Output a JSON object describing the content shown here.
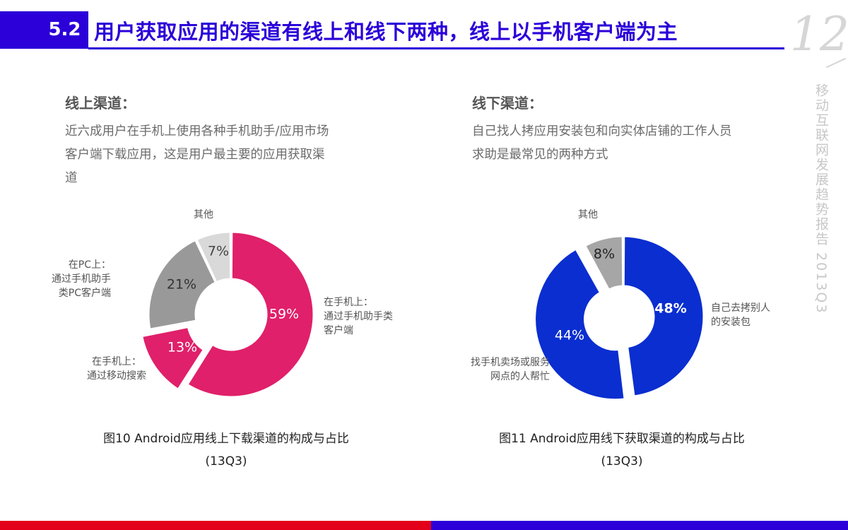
{
  "header": {
    "section_number": "5.2",
    "title": "用户获取应用的渠道有线上和线下两种，线上以手机客户端为主",
    "page_number": "12",
    "report_name": "移动互联网发展趋势报告 2013Q3"
  },
  "left": {
    "heading": "线上渠道：",
    "desc_lines": [
      "近六成用户在手机上使用各种手机助手/应用市场",
      "客户端下载应用，这是用户最主要的应用获取渠",
      "道"
    ],
    "caption_line1": "图10 Android应用线上下载渠道的构成与占比",
    "caption_line2": "(13Q3)"
  },
  "right": {
    "heading": "线下渠道：",
    "desc_lines": [
      "自己找人拷应用安装包和向实体店铺的工作人员",
      "求助是最常见的两种方式"
    ],
    "caption_line1": "图11 Android应用线下获取渠道的构成与占比",
    "caption_line2": "(13Q3)"
  },
  "chart_data": [
    {
      "type": "pie",
      "donut": true,
      "title": "图10 Android应用线上下载渠道的构成与占比 (13Q3)",
      "slices": [
        {
          "label_lines": [
            "在手机上：",
            "通过手机助手类",
            "客户端"
          ],
          "value": 59,
          "value_label": "59%",
          "color": "#e0206a"
        },
        {
          "label_lines": [
            "在手机上：",
            "通过移动搜索"
          ],
          "value": 13,
          "value_label": "13%",
          "color": "#e0206a"
        },
        {
          "label_lines": [
            "在PC上：",
            "通过手机助手",
            "类PC客户端"
          ],
          "value": 21,
          "value_label": "21%",
          "color": "#999999"
        },
        {
          "label_lines": [
            "其他"
          ],
          "value": 7,
          "value_label": "7%",
          "color": "#d9d9d9"
        }
      ],
      "exploded_slice": 1
    },
    {
      "type": "pie",
      "donut": true,
      "title": "图11 Android应用线下获取渠道的构成与占比 (13Q3)",
      "slices": [
        {
          "label_lines": [
            "自己去拷别人",
            "的安装包"
          ],
          "value": 48,
          "value_label": "48%",
          "color": "#0a2ed0"
        },
        {
          "label_lines": [
            "找手机卖场或服务",
            "网点的人帮忙"
          ],
          "value": 44,
          "value_label": "44%",
          "color": "#0a2ed0"
        },
        {
          "label_lines": [
            "其他"
          ],
          "value": 8,
          "value_label": "8%",
          "color": "#a6a6a6"
        }
      ],
      "exploded_slice": 1
    }
  ],
  "colors": {
    "accent_blue": "#2b00d9",
    "bottom_red": "#e3001b"
  }
}
